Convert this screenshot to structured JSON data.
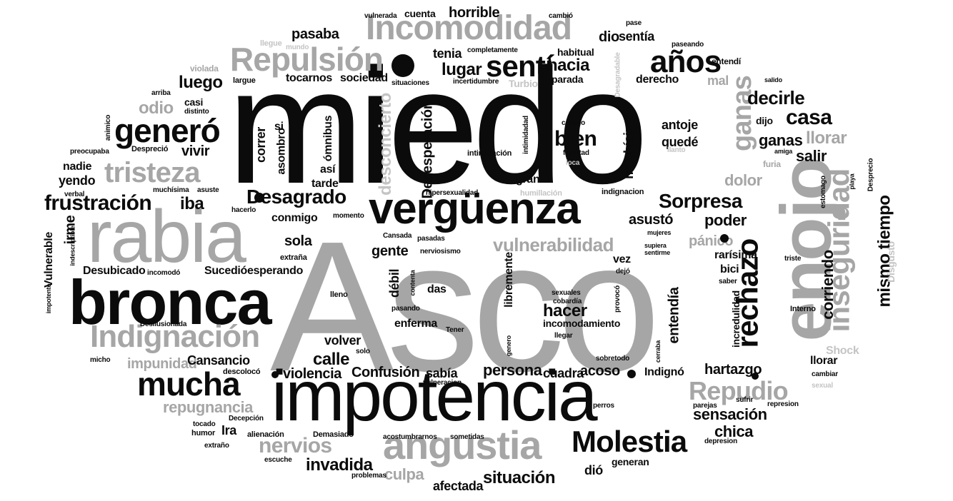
{
  "colors": {
    "dark": "#0b0b0b",
    "mid": "#a6a6a6",
    "light": "#c4c4c4",
    "background": "#ffffff"
  },
  "words": [
    {
      "text": "Asco",
      "tone": "g"
    },
    {
      "text": "miedo",
      "tone": "k"
    },
    {
      "text": "impotencia",
      "tone": "k"
    },
    {
      "text": "rabia",
      "tone": "g"
    },
    {
      "text": "bronca",
      "tone": "k"
    },
    {
      "text": "enojo",
      "tone": "g"
    },
    {
      "text": "vergüenza",
      "tone": "k"
    },
    {
      "text": "angustia",
      "tone": "g"
    },
    {
      "text": "Incomodidad",
      "tone": "g"
    },
    {
      "text": "Repulsión",
      "tone": "g"
    },
    {
      "text": "Indignación",
      "tone": "g"
    },
    {
      "text": "inseguridad",
      "tone": "g"
    },
    {
      "text": "rechazo",
      "tone": "k"
    },
    {
      "text": "Molestia",
      "tone": "k"
    },
    {
      "text": "mucha",
      "tone": "k"
    },
    {
      "text": "generó",
      "tone": "k"
    },
    {
      "text": "tristeza",
      "tone": "g"
    },
    {
      "text": "frustración",
      "tone": "k"
    },
    {
      "text": "años",
      "tone": "k"
    },
    {
      "text": "sentí",
      "tone": "k"
    },
    {
      "text": "ganas",
      "tone": "g"
    },
    {
      "text": "Repudio",
      "tone": "g"
    },
    {
      "text": "Desagrado",
      "tone": "k"
    },
    {
      "text": "vulnerabilidad",
      "tone": "g"
    },
    {
      "text": "Sorpresa",
      "tone": "k"
    },
    {
      "text": "casa",
      "tone": "k"
    },
    {
      "text": "decirle",
      "tone": "k"
    },
    {
      "text": "mismo tiempo",
      "tone": "k"
    },
    {
      "text": "desconcierto",
      "tone": "l"
    },
    {
      "text": "Desesperación",
      "tone": "k"
    },
    {
      "text": "sensación",
      "tone": "k"
    },
    {
      "text": "chica",
      "tone": "k"
    },
    {
      "text": "nervios",
      "tone": "g"
    },
    {
      "text": "repugnancia",
      "tone": "g"
    },
    {
      "text": "impunidad",
      "tone": "g"
    },
    {
      "text": "situación",
      "tone": "k"
    },
    {
      "text": "invadida",
      "tone": "k"
    },
    {
      "text": "culpa",
      "tone": "g"
    },
    {
      "text": "afectada",
      "tone": "k"
    },
    {
      "text": "Confusión",
      "tone": "k"
    },
    {
      "text": "violencia",
      "tone": "k"
    },
    {
      "text": "sabía",
      "tone": "k"
    },
    {
      "text": "persona",
      "tone": "k"
    },
    {
      "text": "cuadra",
      "tone": "k"
    },
    {
      "text": "acoso",
      "tone": "k"
    },
    {
      "text": "Indignó",
      "tone": "k"
    },
    {
      "text": "hartazgo",
      "tone": "k"
    },
    {
      "text": "llorar",
      "tone": "k"
    },
    {
      "text": "llorar",
      "tone": "g"
    },
    {
      "text": "Shock",
      "tone": "l"
    },
    {
      "text": "corriendo",
      "tone": "k"
    },
    {
      "text": "poder",
      "tone": "k"
    },
    {
      "text": "pánico",
      "tone": "g"
    },
    {
      "text": "rarísima",
      "tone": "k"
    },
    {
      "text": "asustó",
      "tone": "k"
    },
    {
      "text": "dolor",
      "tone": "g"
    },
    {
      "text": "salir",
      "tone": "k"
    },
    {
      "text": "ganas",
      "tone": "k"
    },
    {
      "text": "quedé",
      "tone": "k"
    },
    {
      "text": "antoje",
      "tone": "k"
    },
    {
      "text": "bien",
      "tone": "k"
    },
    {
      "text": "muchísimo",
      "tone": "k"
    },
    {
      "text": "hacer",
      "tone": "k"
    },
    {
      "text": "entendía",
      "tone": "k"
    },
    {
      "text": "incomodamiento",
      "tone": "k"
    },
    {
      "text": "enferma",
      "tone": "k"
    },
    {
      "text": "volver",
      "tone": "k"
    },
    {
      "text": "calle",
      "tone": "k"
    },
    {
      "text": "Cansancio",
      "tone": "k"
    },
    {
      "text": "gente",
      "tone": "k"
    },
    {
      "text": "sola",
      "tone": "k"
    },
    {
      "text": "conmigo",
      "tone": "k"
    },
    {
      "text": "esperando",
      "tone": "k"
    },
    {
      "text": "Sucedió",
      "tone": "k"
    },
    {
      "text": "Desubicado",
      "tone": "k"
    },
    {
      "text": "iba",
      "tone": "k"
    },
    {
      "text": "irme",
      "tone": "k"
    },
    {
      "text": "yendo",
      "tone": "k"
    },
    {
      "text": "nadie",
      "tone": "k"
    },
    {
      "text": "vivir",
      "tone": "k"
    },
    {
      "text": "odio",
      "tone": "g"
    },
    {
      "text": "luego",
      "tone": "k"
    },
    {
      "text": "pasaba",
      "tone": "k"
    },
    {
      "text": "horrible",
      "tone": "k"
    },
    {
      "text": "dio",
      "tone": "k"
    },
    {
      "text": "sentía",
      "tone": "k"
    },
    {
      "text": "hacia",
      "tone": "k"
    },
    {
      "text": "lugar",
      "tone": "k"
    },
    {
      "text": "tenia",
      "tone": "k"
    },
    {
      "text": "tocarnos",
      "tone": "k"
    },
    {
      "text": "sociedad",
      "tone": "k"
    },
    {
      "text": "derecho",
      "tone": "k"
    },
    {
      "text": "parada",
      "tone": "k"
    },
    {
      "text": "habitual",
      "tone": "k"
    },
    {
      "text": "mal",
      "tone": "g"
    },
    {
      "text": "Turbio",
      "tone": "l"
    },
    {
      "text": "cuenta",
      "tone": "k"
    },
    {
      "text": "correr",
      "tone": "k"
    },
    {
      "text": "asombro",
      "tone": "k"
    },
    {
      "text": "ómnibus",
      "tone": "k"
    },
    {
      "text": "así",
      "tone": "k"
    },
    {
      "text": "tarde",
      "tone": "k"
    },
    {
      "text": "si",
      "tone": "k"
    },
    {
      "text": "gran",
      "tone": "k"
    },
    {
      "text": "débil",
      "tone": "k"
    },
    {
      "text": "das",
      "tone": "k"
    },
    {
      "text": "libremente",
      "tone": "k"
    },
    {
      "text": "vez",
      "tone": "k"
    },
    {
      "text": "bici",
      "tone": "k"
    },
    {
      "text": "incredulidad",
      "tone": "k"
    },
    {
      "text": "generan",
      "tone": "k"
    },
    {
      "text": "dió",
      "tone": "k"
    },
    {
      "text": "Ira",
      "tone": "k"
    },
    {
      "text": "Vulnerable",
      "tone": "k"
    },
    {
      "text": "casi",
      "tone": "k"
    },
    {
      "text": "dijo",
      "tone": "k"
    },
    {
      "text": "Disgusto",
      "tone": "l"
    },
    {
      "text": "Desagradable",
      "tone": "l"
    },
    {
      "text": "humillación",
      "tone": "l"
    },
    {
      "text": "intimidación",
      "tone": "k"
    },
    {
      "text": "intimidadad",
      "tone": "k"
    },
    {
      "text": "incertidumbre",
      "tone": "k"
    },
    {
      "text": "completamente",
      "tone": "k"
    },
    {
      "text": "situaciones",
      "tone": "k"
    },
    {
      "text": "largue",
      "tone": "k"
    },
    {
      "text": "vulnerada",
      "tone": "k"
    },
    {
      "text": "cambió",
      "tone": "k"
    },
    {
      "text": "pase",
      "tone": "k"
    },
    {
      "text": "paseando",
      "tone": "k"
    },
    {
      "text": "entendí",
      "tone": "k"
    },
    {
      "text": "violada",
      "tone": "g"
    },
    {
      "text": "llegue",
      "tone": "l"
    },
    {
      "text": "mundo",
      "tone": "l"
    },
    {
      "text": "arriba",
      "tone": "k"
    },
    {
      "text": "distinto",
      "tone": "k"
    },
    {
      "text": "animico",
      "tone": "k"
    },
    {
      "text": "preocupaba",
      "tone": "k"
    },
    {
      "text": "Despreció",
      "tone": "k"
    },
    {
      "text": "verbal",
      "tone": "k"
    },
    {
      "text": "muchísima",
      "tone": "k"
    },
    {
      "text": "asuste",
      "tone": "k"
    },
    {
      "text": "hacerlo",
      "tone": "k"
    },
    {
      "text": "momento",
      "tone": "k"
    },
    {
      "text": "hipersexualidad",
      "tone": "k"
    },
    {
      "text": "indignacion",
      "tone": "k"
    },
    {
      "text": "Cansada",
      "tone": "k"
    },
    {
      "text": "pasadas",
      "tone": "k"
    },
    {
      "text": "nerviosismo",
      "tone": "k"
    },
    {
      "text": "indescriptible",
      "tone": "k"
    },
    {
      "text": "extraña",
      "tone": "k"
    },
    {
      "text": "incomodó",
      "tone": "k"
    },
    {
      "text": "impotente",
      "tone": "k"
    },
    {
      "text": "Desilusionada",
      "tone": "k"
    },
    {
      "text": "micho",
      "tone": "k"
    },
    {
      "text": "solo",
      "tone": "k"
    },
    {
      "text": "lleno",
      "tone": "k"
    },
    {
      "text": "contenta",
      "tone": "k"
    },
    {
      "text": "pasando",
      "tone": "k"
    },
    {
      "text": "Tener",
      "tone": "k"
    },
    {
      "text": "genero",
      "tone": "k"
    },
    {
      "text": "llegar",
      "tone": "k"
    },
    {
      "text": "sexuales",
      "tone": "k"
    },
    {
      "text": "cobardía",
      "tone": "k"
    },
    {
      "text": "provocó",
      "tone": "k"
    },
    {
      "text": "cerraba",
      "tone": "k"
    },
    {
      "text": "descolocó",
      "tone": "k"
    },
    {
      "text": "vulneracion",
      "tone": "k"
    },
    {
      "text": "sobretodo",
      "tone": "k"
    },
    {
      "text": "Decepción",
      "tone": "k"
    },
    {
      "text": "tocado",
      "tone": "k"
    },
    {
      "text": "humor",
      "tone": "k"
    },
    {
      "text": "extraño",
      "tone": "k"
    },
    {
      "text": "alienación",
      "tone": "k"
    },
    {
      "text": "Demasiado",
      "tone": "k"
    },
    {
      "text": "escuche",
      "tone": "k"
    },
    {
      "text": "acostumbrarnos",
      "tone": "k"
    },
    {
      "text": "sometidas",
      "tone": "k"
    },
    {
      "text": "problemas",
      "tone": "k"
    },
    {
      "text": "perros",
      "tone": "k"
    },
    {
      "text": "parejas",
      "tone": "k"
    },
    {
      "text": "sufrir",
      "tone": "k"
    },
    {
      "text": "represion",
      "tone": "k"
    },
    {
      "text": "depresion",
      "tone": "k"
    },
    {
      "text": "cambiar",
      "tone": "k"
    },
    {
      "text": "sexual",
      "tone": "l"
    },
    {
      "text": "Interno",
      "tone": "k"
    },
    {
      "text": "saber",
      "tone": "k"
    },
    {
      "text": "triste",
      "tone": "k"
    },
    {
      "text": "supiera",
      "tone": "k"
    },
    {
      "text": "sentirme",
      "tone": "k"
    },
    {
      "text": "mujeres",
      "tone": "k"
    },
    {
      "text": "dejó",
      "tone": "k"
    },
    {
      "text": "estomago",
      "tone": "k"
    },
    {
      "text": "playa",
      "tone": "k"
    },
    {
      "text": "Desprecio",
      "tone": "k"
    },
    {
      "text": "furia",
      "tone": "g"
    },
    {
      "text": "amiga",
      "tone": "k"
    },
    {
      "text": "llanto",
      "tone": "l"
    },
    {
      "text": "loca",
      "tone": "l"
    },
    {
      "text": "callado",
      "tone": "k"
    },
    {
      "text": "facultad",
      "tone": "k"
    },
    {
      "text": "salido",
      "tone": "k"
    }
  ]
}
